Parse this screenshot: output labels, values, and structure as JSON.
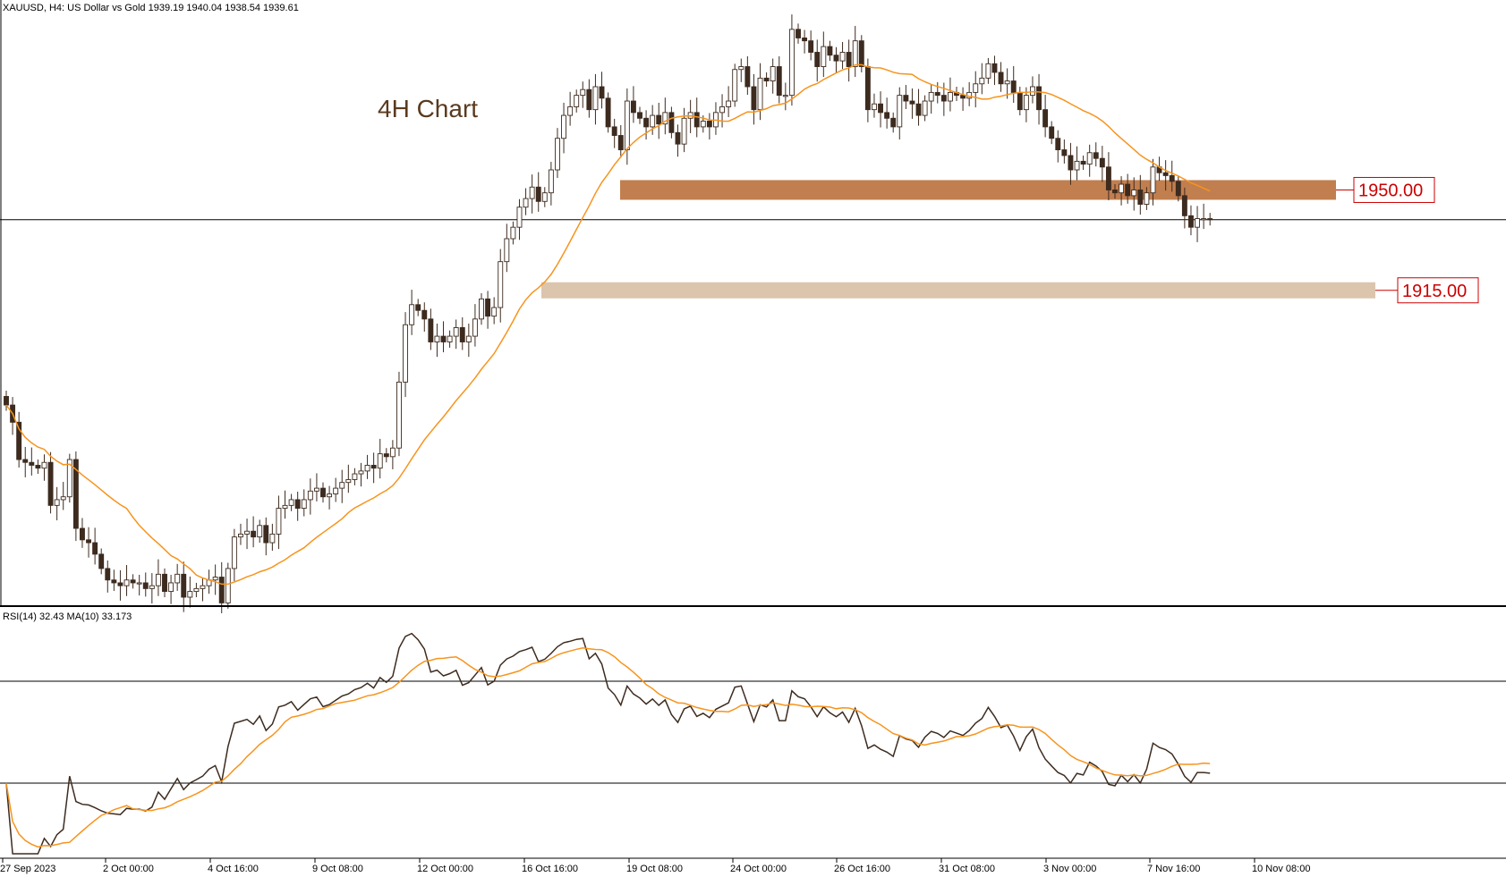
{
  "header": {
    "symbol_line": "XAUUSD, H4:  US Dollar vs Gold  1939.19 1940.04 1938.54 1939.61",
    "annotation": "4H Chart"
  },
  "rsi_panel": {
    "label": "RSI(14) 32.43 MA(10) 33.173"
  },
  "levels": [
    {
      "price": 1950.0,
      "label": "1950.00",
      "color": "#c17e4f"
    },
    {
      "price": 1915.0,
      "label": "1915.00",
      "color": "#dcc5ad"
    }
  ],
  "current_price_line": 1939.61,
  "x_ticks": [
    "27 Sep 2023",
    "2 Oct 00:00",
    "4 Oct 16:00",
    "9 Oct 08:00",
    "12 Oct 00:00",
    "16 Oct 16:00",
    "19 Oct 08:00",
    "24 Oct 00:00",
    "26 Oct 16:00",
    "31 Oct 08:00",
    "3 Nov 00:00",
    "7 Nov 16:00",
    "10 Nov 08:00"
  ],
  "colors": {
    "bull_body": "#ffffff",
    "bear_body": "#3d2b1f",
    "wick": "#3d2b1f",
    "ma": "#f7941d",
    "rsi": "#3d2b1f",
    "rsi_ma": "#f7941d",
    "level_text": "#cc0000"
  },
  "chart_data": {
    "type": "candlestick",
    "series_ma_label": "",
    "ylim_price": [
      1808,
      2010
    ],
    "rsi_levels": [
      70,
      30
    ],
    "closes": [
      1875,
      1869,
      1856,
      1855,
      1854,
      1853,
      1855,
      1840,
      1842,
      1843,
      1856,
      1832,
      1828,
      1827,
      1823,
      1818,
      1814,
      1813,
      1812,
      1814,
      1813,
      1813,
      1811,
      1812,
      1816,
      1810,
      1813,
      1816,
      1808,
      1810,
      1811,
      1812,
      1814,
      1815,
      1806,
      1818,
      1829,
      1830,
      1831,
      1829,
      1833,
      1827,
      1830,
      1839,
      1840,
      1842,
      1839,
      1842,
      1845,
      1846,
      1843,
      1844,
      1846,
      1848,
      1849,
      1851,
      1852,
      1854,
      1853,
      1858,
      1857,
      1860,
      1883,
      1903,
      1910,
      1908,
      1905,
      1897,
      1899,
      1897,
      1899,
      1902,
      1897,
      1899,
      1905,
      1912,
      1906,
      1909,
      1925,
      1933,
      1937,
      1944,
      1947,
      1951,
      1946,
      1949,
      1957,
      1968,
      1976,
      1979,
      1983,
      1985,
      1978,
      1986,
      1982,
      1972,
      1969,
      1964,
      1981,
      1977,
      1975,
      1972,
      1976,
      1973,
      1977,
      1970,
      1966,
      1975,
      1977,
      1972,
      1974,
      1972,
      1977,
      1979,
      1981,
      1992,
      1993,
      1986,
      1978,
      1989,
      1988,
      1993,
      1983,
      1983,
      2006,
      2003,
      2002,
      1998,
      1993,
      2000,
      1997,
      1995,
      1998,
      1993,
      2002,
      1993,
      1978,
      1980,
      1977,
      1975,
      1972,
      1983,
      1981,
      1980,
      1976,
      1981,
      1984,
      1983,
      1981,
      1984,
      1983,
      1982,
      1984,
      1987,
      1989,
      1994,
      1991,
      1987,
      1988,
      1984,
      1978,
      1983,
      1986,
      1978,
      1972,
      1968,
      1964,
      1962,
      1957,
      1960,
      1959,
      1963,
      1961,
      1958,
      1950,
      1949,
      1952,
      1948,
      1950,
      1945,
      1949,
      1958,
      1956,
      1955,
      1953,
      1948,
      1941,
      1937,
      1940,
      1940,
      1939.61
    ]
  }
}
